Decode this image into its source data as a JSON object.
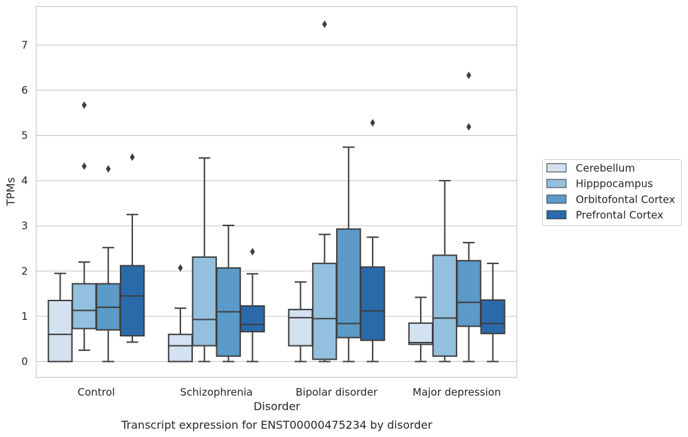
{
  "chart_data": {
    "type": "box",
    "caption": "Transcript expression for ENST00000475234 by disorder",
    "xlabel": "Disorder",
    "ylabel": "TPMs",
    "ylim": [
      -0.35,
      7.85
    ],
    "yticks": [
      0,
      1,
      2,
      3,
      4,
      5,
      6,
      7
    ],
    "grid": "horizontal",
    "legend_position": "right",
    "categories": [
      "Control",
      "Schizophrenia",
      "Bipolar disorder",
      "Major depression"
    ],
    "series": [
      {
        "name": "Cerebellum",
        "color": "#d3e2f1",
        "boxes": [
          {
            "whislo": 0.0,
            "q1": 0.0,
            "med": 0.6,
            "q3": 1.35,
            "whishi": 1.95,
            "fliers": []
          },
          {
            "whislo": 0.0,
            "q1": 0.0,
            "med": 0.35,
            "q3": 0.6,
            "whishi": 1.18,
            "fliers": [
              2.07
            ]
          },
          {
            "whislo": 0.0,
            "q1": 0.35,
            "med": 0.97,
            "q3": 1.15,
            "whishi": 1.76,
            "fliers": []
          },
          {
            "whislo": 0.0,
            "q1": 0.38,
            "med": 0.42,
            "q3": 0.85,
            "whishi": 1.42,
            "fliers": []
          }
        ]
      },
      {
        "name": "Hipppocampus",
        "color": "#93c0df",
        "boxes": [
          {
            "whislo": 0.25,
            "q1": 0.73,
            "med": 1.13,
            "q3": 1.72,
            "whishi": 2.2,
            "fliers": [
              4.32,
              5.67
            ]
          },
          {
            "whislo": 0.0,
            "q1": 0.35,
            "med": 0.93,
            "q3": 2.31,
            "whishi": 4.5,
            "fliers": []
          },
          {
            "whislo": 0.0,
            "q1": 0.05,
            "med": 0.95,
            "q3": 2.17,
            "whishi": 2.81,
            "fliers": [
              7.46
            ]
          },
          {
            "whislo": 0.0,
            "q1": 0.12,
            "med": 0.96,
            "q3": 2.35,
            "whishi": 4.0,
            "fliers": []
          }
        ]
      },
      {
        "name": "Orbitofontal Cortex",
        "color": "#5b9ac9",
        "boxes": [
          {
            "whislo": 0.0,
            "q1": 0.7,
            "med": 1.2,
            "q3": 1.72,
            "whishi": 2.52,
            "fliers": [
              4.26
            ]
          },
          {
            "whislo": 0.0,
            "q1": 0.12,
            "med": 1.1,
            "q3": 2.07,
            "whishi": 3.01,
            "fliers": []
          },
          {
            "whislo": 0.0,
            "q1": 0.53,
            "med": 0.84,
            "q3": 2.93,
            "whishi": 4.74,
            "fliers": []
          },
          {
            "whislo": 0.0,
            "q1": 0.78,
            "med": 1.31,
            "q3": 2.23,
            "whishi": 2.63,
            "fliers": [
              5.19,
              6.33
            ]
          }
        ]
      },
      {
        "name": "Prefrontal Cortex",
        "color": "#2b6aaa",
        "boxes": [
          {
            "whislo": 0.43,
            "q1": 0.57,
            "med": 1.45,
            "q3": 2.12,
            "whishi": 3.25,
            "fliers": [
              4.52
            ]
          },
          {
            "whislo": 0.0,
            "q1": 0.66,
            "med": 0.82,
            "q3": 1.23,
            "whishi": 1.94,
            "fliers": [
              2.43
            ]
          },
          {
            "whislo": 0.0,
            "q1": 0.47,
            "med": 1.12,
            "q3": 2.09,
            "whishi": 2.75,
            "fliers": [
              5.28
            ]
          },
          {
            "whislo": 0.0,
            "q1": 0.62,
            "med": 0.84,
            "q3": 1.36,
            "whishi": 2.17,
            "fliers": []
          }
        ]
      }
    ]
  }
}
